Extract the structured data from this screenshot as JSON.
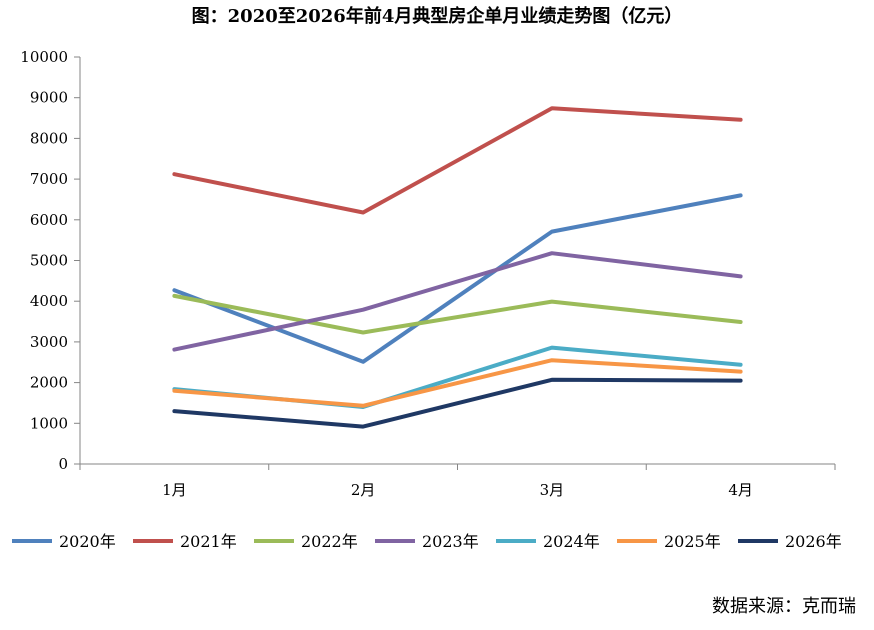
{
  "chart_data": {
    "type": "line",
    "title": "图：2020至2026年前4月典型房企单月业绩走势图（亿元）",
    "categories": [
      "1月",
      "2月",
      "3月",
      "4月"
    ],
    "ylim": [
      0,
      10000
    ],
    "yticks": [
      0,
      1000,
      2000,
      3000,
      4000,
      5000,
      6000,
      7000,
      8000,
      9000,
      10000
    ],
    "grid": false,
    "legend_position": "bottom",
    "series": [
      {
        "name": "2020年",
        "color": "#4F81BD",
        "values": [
          4270,
          2510,
          5710,
          6600
        ]
      },
      {
        "name": "2021年",
        "color": "#C0504D",
        "values": [
          7120,
          6180,
          8740,
          8460
        ]
      },
      {
        "name": "2022年",
        "color": "#9BBB59",
        "values": [
          4130,
          3230,
          3990,
          3490
        ]
      },
      {
        "name": "2023年",
        "color": "#8064A2",
        "values": [
          2810,
          3790,
          5180,
          4610
        ]
      },
      {
        "name": "2024年",
        "color": "#4BACC6",
        "values": [
          1840,
          1400,
          2860,
          2440
        ]
      },
      {
        "name": "2025年",
        "color": "#F79646",
        "values": [
          1800,
          1430,
          2550,
          2270
        ]
      },
      {
        "name": "2026年",
        "color": "#1F3864",
        "values": [
          1300,
          920,
          2070,
          2050
        ]
      }
    ]
  },
  "source": "数据来源：克而瑞"
}
